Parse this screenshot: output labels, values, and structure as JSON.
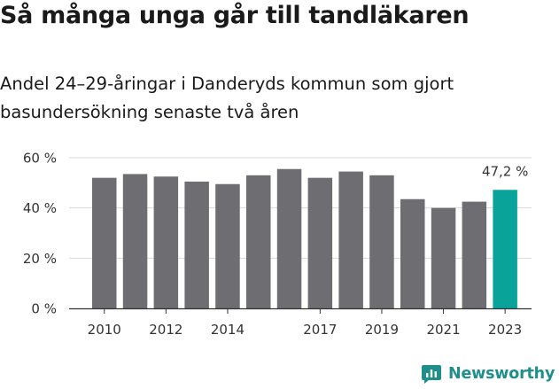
{
  "title": "Så många unga går till tandläkaren",
  "subtitle": "Andel 24–29-åringar i Danderyds kommun som gjort basundersökning senaste två åren",
  "brand": {
    "name": "Newsworthy",
    "icon": "newsworthy-logo-icon",
    "color": "#1f8f8c"
  },
  "chart_data": {
    "type": "bar",
    "categories": [
      "2010",
      "2011",
      "2012",
      "2013",
      "2014",
      "2015",
      "2016",
      "2017",
      "2018",
      "2019",
      "2020",
      "2021",
      "2022",
      "2023"
    ],
    "values": [
      52,
      53.5,
      52.5,
      50.5,
      49.5,
      53,
      55.5,
      52,
      54.5,
      53,
      43.5,
      40,
      42.5,
      47.2
    ],
    "x_tick_labels": [
      "2010",
      "2012",
      "2014",
      "2017",
      "2019",
      "2021",
      "2023"
    ],
    "y_ticks": [
      0,
      20,
      40,
      60
    ],
    "y_tick_labels": [
      "0 %",
      "20 %",
      "40 %",
      "60 %"
    ],
    "ylim": [
      0,
      60
    ],
    "xlabel": "",
    "ylabel": "",
    "grid": true,
    "annotation": {
      "category": "2023",
      "text": "47,2 %"
    },
    "colors": {
      "bar": "#6e6d72",
      "highlight": "#0aa39a",
      "grid": "#d9d9d9",
      "axis": "#333333"
    }
  }
}
